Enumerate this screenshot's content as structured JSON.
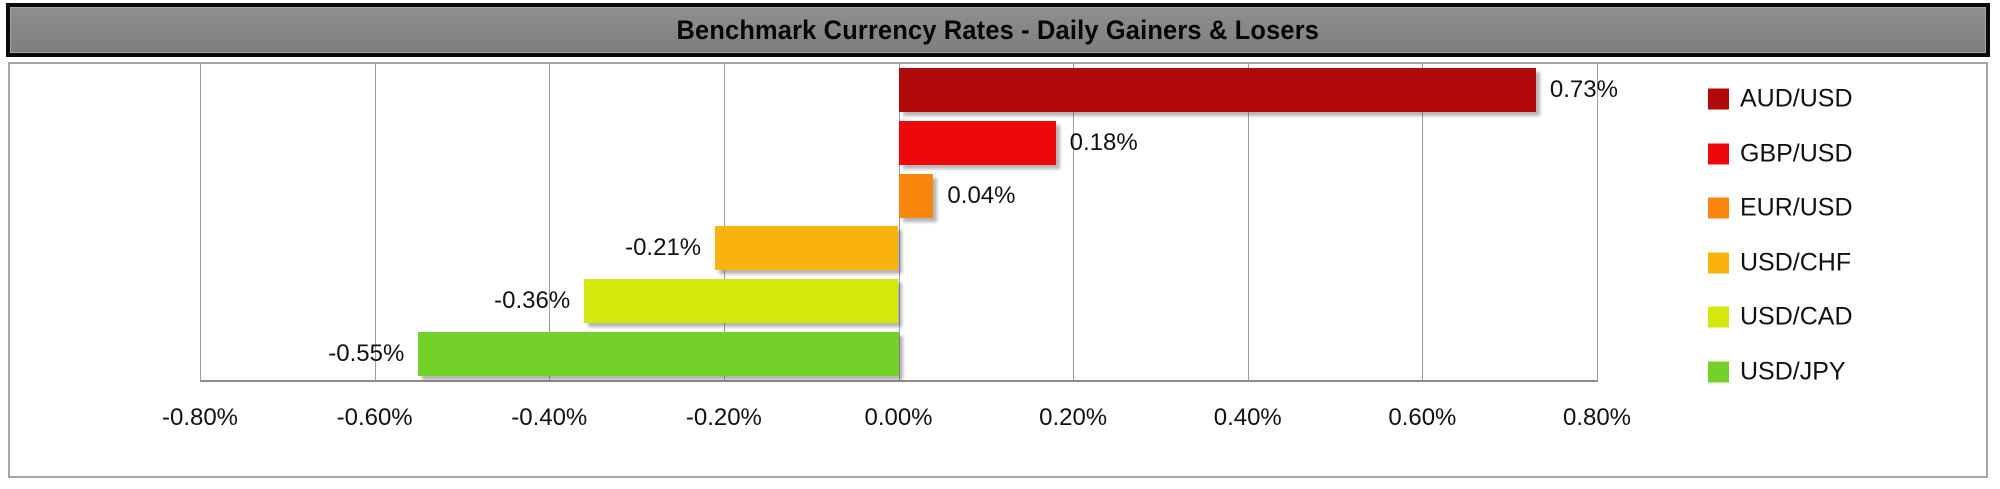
{
  "header": {
    "title": "Benchmark Currency Rates - Daily Gainers & Losers"
  },
  "chart_data": {
    "type": "bar",
    "orientation": "horizontal",
    "title": "Benchmark Currency Rates - Daily Gainers & Losers",
    "categories": [
      "AUD/USD",
      "GBP/USD",
      "EUR/USD",
      "USD/CHF",
      "USD/CAD",
      "USD/JPY"
    ],
    "values": [
      0.73,
      0.18,
      0.04,
      -0.21,
      -0.36,
      -0.55
    ],
    "value_labels": [
      "0.73%",
      "0.18%",
      "0.04%",
      "-0.21%",
      "-0.36%",
      "-0.55%"
    ],
    "bar_colors": [
      "#B20A0A",
      "#ED0909",
      "#F8860B",
      "#FAB30C",
      "#D5E80B",
      "#74D12A"
    ],
    "xlim": [
      -0.8,
      0.8
    ],
    "x_tick_values": [
      -0.8,
      -0.6,
      -0.4,
      -0.2,
      0,
      0.2,
      0.4,
      0.6,
      0.8
    ],
    "x_tick_labels": [
      "-0.80%",
      "-0.60%",
      "-0.40%",
      "-0.20%",
      "0.00%",
      "0.20%",
      "0.40%",
      "0.60%",
      "0.80%"
    ],
    "grid": "vertical gridlines on",
    "legend_position": "right",
    "legend": [
      {
        "label": "AUD/USD",
        "color": "#B20A0A"
      },
      {
        "label": "GBP/USD",
        "color": "#ED0909"
      },
      {
        "label": "EUR/USD",
        "color": "#F8860B"
      },
      {
        "label": "USD/CHF",
        "color": "#FAB30C"
      },
      {
        "label": "USD/CAD",
        "color": "#D5E80B"
      },
      {
        "label": "USD/JPY",
        "color": "#74D12A"
      }
    ]
  },
  "colors": {
    "title_bg": "#868686",
    "title_border": "#0A0A0A",
    "title_text": "#050505",
    "chart_border": "#A6A6A6",
    "gridline": "#9B9B9B",
    "axis_line": "#8C8C8C",
    "label_text": "#111111"
  }
}
